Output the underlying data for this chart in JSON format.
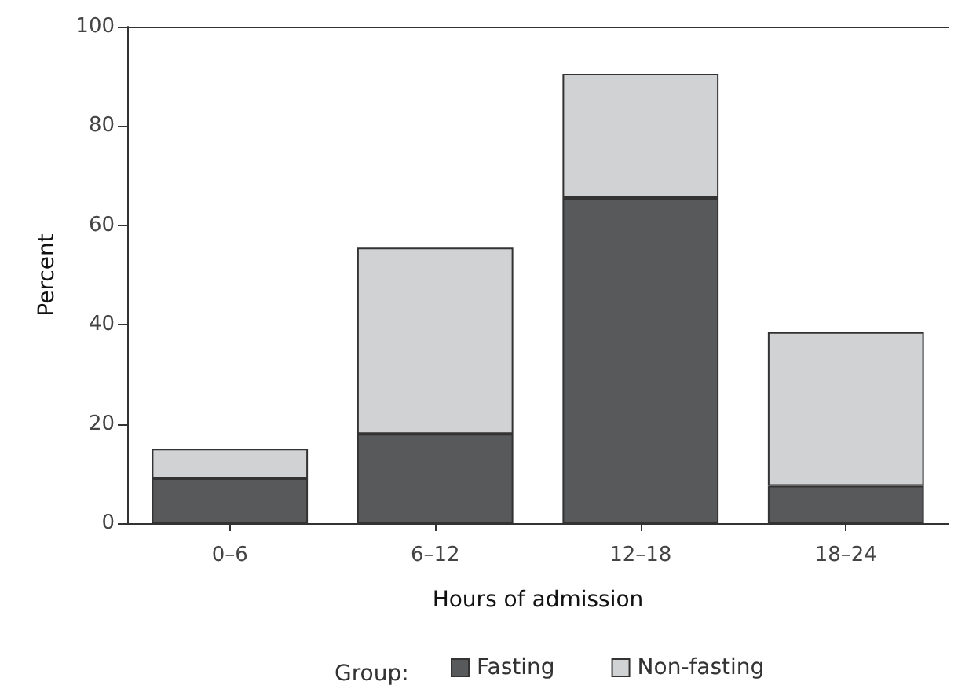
{
  "chart_data": {
    "type": "bar",
    "stacked": true,
    "xlabel": "Hours of admission",
    "ylabel": "Percent",
    "legend_title": "Group:",
    "categories": [
      "0–6",
      "6–12",
      "12–18",
      "18–24"
    ],
    "series": [
      {
        "name": "Fasting",
        "color": "#58595b",
        "values": [
          9,
          18,
          65.5,
          7.5
        ]
      },
      {
        "name": "Non-fasting",
        "color": "#d1d2d4",
        "values": [
          6,
          37.5,
          25,
          31
        ]
      }
    ],
    "ylim": [
      0,
      100
    ],
    "yticks": [
      0,
      20,
      40,
      60,
      80,
      100
    ],
    "grid": false,
    "legend": "bottom"
  }
}
